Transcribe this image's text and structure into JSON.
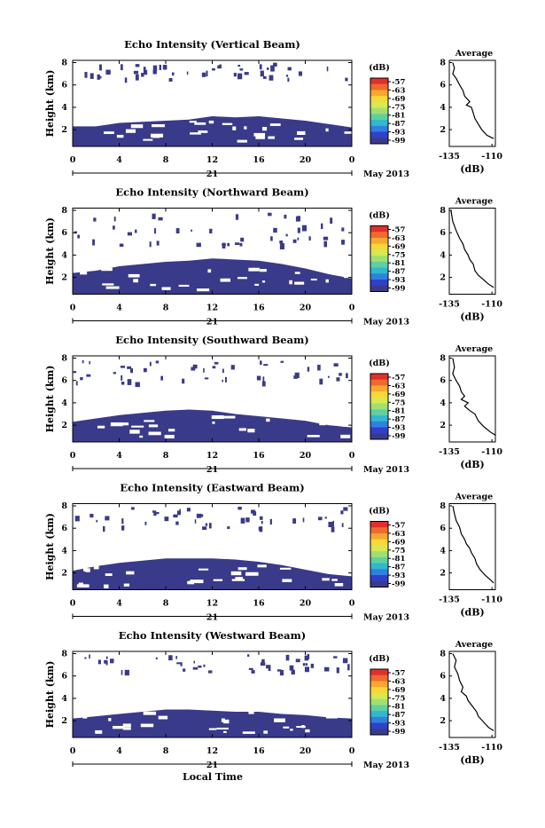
{
  "colorbar": {
    "unit_label": "(dB)",
    "ticks": [
      "-57",
      "-63",
      "-69",
      "-75",
      "-81",
      "-87",
      "-93",
      "-99"
    ],
    "colors": [
      "#e0302c",
      "#f06a2e",
      "#f8a830",
      "#f8d838",
      "#d8e850",
      "#a0e070",
      "#60d0a0",
      "#30b8d0",
      "#3080e0",
      "#3040c8",
      "#3a3a8a"
    ]
  },
  "date_label": "May 2013",
  "xlabel": "Local Time",
  "chart_data": [
    {
      "type": "heatmap",
      "title": "Echo Intensity (Vertical Beam)",
      "ylabel": "Height (km)",
      "x_ticks": [
        "0",
        "4",
        "8",
        "12",
        "16",
        "20",
        "0"
      ],
      "x_day": "21",
      "y_ticks": [
        "2",
        "4",
        "6",
        "8"
      ],
      "xlim": [
        0,
        24
      ],
      "ylim": [
        0.5,
        8.2
      ],
      "fill_top": [
        [
          0,
          2.3
        ],
        [
          2,
          2.3
        ],
        [
          4,
          2.6
        ],
        [
          6,
          2.7
        ],
        [
          8,
          2.8
        ],
        [
          10,
          2.9
        ],
        [
          12,
          3.2
        ],
        [
          14,
          3.1
        ],
        [
          16,
          3.2
        ],
        [
          18,
          3.0
        ],
        [
          20,
          2.8
        ],
        [
          22,
          2.5
        ],
        [
          24,
          2.2
        ]
      ],
      "sparse_band": [
        6.6,
        8.0
      ],
      "profile": {
        "title": "Average",
        "xlabel": "(dB)",
        "x_ticks": [
          "-135",
          "-110"
        ],
        "y_ticks": [
          "2",
          "4",
          "6",
          "8"
        ],
        "xlim": [
          -135,
          -108
        ],
        "ylim": [
          0.5,
          8.2
        ],
        "points": [
          [
            -133,
            8.0
          ],
          [
            -132,
            7.5
          ],
          [
            -133,
            7.0
          ],
          [
            -131,
            6.6
          ],
          [
            -129,
            6.0
          ],
          [
            -127,
            5.5
          ],
          [
            -126,
            5.0
          ],
          [
            -123,
            4.5
          ],
          [
            -125,
            4.2
          ],
          [
            -122,
            4.0
          ],
          [
            -121,
            3.5
          ],
          [
            -120,
            3.0
          ],
          [
            -118,
            2.5
          ],
          [
            -116,
            2.0
          ],
          [
            -113,
            1.5
          ],
          [
            -109,
            1.2
          ]
        ]
      }
    },
    {
      "type": "heatmap",
      "title": "Echo Intensity (Northward Beam)",
      "ylabel": "Height (km)",
      "x_ticks": [
        "0",
        "4",
        "8",
        "12",
        "16",
        "20",
        "0"
      ],
      "x_day": "21",
      "y_ticks": [
        "2",
        "4",
        "6",
        "8"
      ],
      "xlim": [
        0,
        24
      ],
      "ylim": [
        0.5,
        8.2
      ],
      "fill_top": [
        [
          0,
          2.4
        ],
        [
          2,
          2.6
        ],
        [
          4,
          3.0
        ],
        [
          6,
          3.2
        ],
        [
          8,
          3.4
        ],
        [
          10,
          3.5
        ],
        [
          12,
          3.7
        ],
        [
          14,
          3.6
        ],
        [
          16,
          3.5
        ],
        [
          18,
          3.2
        ],
        [
          20,
          2.8
        ],
        [
          22,
          2.3
        ],
        [
          24,
          1.9
        ]
      ],
      "sparse_band": [
        5.0,
        8.0
      ],
      "profile": {
        "title": "Average",
        "xlabel": "(dB)",
        "x_ticks": [
          "-135",
          "-110"
        ],
        "y_ticks": [
          "2",
          "4",
          "6",
          "8"
        ],
        "xlim": [
          -135,
          -108
        ],
        "ylim": [
          0.5,
          8.2
        ],
        "points": [
          [
            -134,
            8.0
          ],
          [
            -133,
            7.0
          ],
          [
            -131,
            6.2
          ],
          [
            -129,
            5.5
          ],
          [
            -127,
            5.0
          ],
          [
            -126,
            4.5
          ],
          [
            -124,
            4.0
          ],
          [
            -123,
            3.6
          ],
          [
            -121,
            3.2
          ],
          [
            -120,
            2.6
          ],
          [
            -118,
            2.2
          ],
          [
            -115,
            1.8
          ],
          [
            -112,
            1.4
          ],
          [
            -109,
            1.1
          ]
        ]
      }
    },
    {
      "type": "heatmap",
      "title": "Echo Intensity (Southward Beam)",
      "ylabel": "Height (km)",
      "x_ticks": [
        "0",
        "4",
        "8",
        "12",
        "16",
        "20",
        "0"
      ],
      "x_day": "21",
      "y_ticks": [
        "2",
        "4",
        "6",
        "8"
      ],
      "xlim": [
        0,
        24
      ],
      "ylim": [
        0.5,
        8.2
      ],
      "fill_top": [
        [
          0,
          2.3
        ],
        [
          2,
          2.6
        ],
        [
          4,
          2.9
        ],
        [
          6,
          3.1
        ],
        [
          8,
          3.3
        ],
        [
          10,
          3.4
        ],
        [
          12,
          3.3
        ],
        [
          14,
          3.0
        ],
        [
          16,
          2.8
        ],
        [
          18,
          2.6
        ],
        [
          20,
          2.4
        ],
        [
          22,
          2.0
        ],
        [
          24,
          1.8
        ]
      ],
      "sparse_band": [
        5.8,
        8.0
      ],
      "profile": {
        "title": "Average",
        "xlabel": "(dB)",
        "x_ticks": [
          "-135",
          "-110"
        ],
        "y_ticks": [
          "2",
          "4",
          "6",
          "8"
        ],
        "xlim": [
          -135,
          -108
        ],
        "ylim": [
          0.5,
          8.2
        ],
        "points": [
          [
            -133,
            8.0
          ],
          [
            -132,
            7.2
          ],
          [
            -133,
            6.6
          ],
          [
            -131,
            6.0
          ],
          [
            -129,
            5.5
          ],
          [
            -128,
            5.0
          ],
          [
            -126,
            4.6
          ],
          [
            -128,
            4.3
          ],
          [
            -124,
            4.0
          ],
          [
            -126,
            3.7
          ],
          [
            -123,
            3.3
          ],
          [
            -120,
            3.0
          ],
          [
            -118,
            2.4
          ],
          [
            -115,
            1.9
          ],
          [
            -111,
            1.4
          ],
          [
            -108,
            1.1
          ]
        ]
      }
    },
    {
      "type": "heatmap",
      "title": "Echo Intensity (Eastward Beam)",
      "ylabel": "Height (km)",
      "x_ticks": [
        "0",
        "4",
        "8",
        "12",
        "16",
        "20",
        "0"
      ],
      "x_day": "21",
      "y_ticks": [
        "2",
        "4",
        "6",
        "8"
      ],
      "xlim": [
        0,
        24
      ],
      "ylim": [
        0.5,
        8.2
      ],
      "fill_top": [
        [
          0,
          2.2
        ],
        [
          2,
          2.6
        ],
        [
          4,
          2.9
        ],
        [
          6,
          3.1
        ],
        [
          8,
          3.3
        ],
        [
          10,
          3.3
        ],
        [
          12,
          3.3
        ],
        [
          14,
          3.2
        ],
        [
          16,
          3.0
        ],
        [
          18,
          2.7
        ],
        [
          20,
          2.3
        ],
        [
          22,
          1.9
        ],
        [
          24,
          1.7
        ]
      ],
      "sparse_band": [
        6.0,
        8.0
      ],
      "profile": {
        "title": "Average",
        "xlabel": "(dB)",
        "x_ticks": [
          "-135",
          "-110"
        ],
        "y_ticks": [
          "2",
          "4",
          "6",
          "8"
        ],
        "xlim": [
          -135,
          -108
        ],
        "ylim": [
          0.5,
          8.2
        ],
        "points": [
          [
            -133,
            8.0
          ],
          [
            -132,
            7.3
          ],
          [
            -131,
            6.7
          ],
          [
            -129,
            6.1
          ],
          [
            -128,
            5.5
          ],
          [
            -126,
            5.0
          ],
          [
            -125,
            4.6
          ],
          [
            -123,
            4.2
          ],
          [
            -122,
            3.8
          ],
          [
            -120,
            3.3
          ],
          [
            -119,
            2.8
          ],
          [
            -117,
            2.3
          ],
          [
            -114,
            1.8
          ],
          [
            -111,
            1.4
          ],
          [
            -109,
            1.1
          ]
        ]
      }
    },
    {
      "type": "heatmap",
      "title": "Echo Intensity (Westward Beam)",
      "ylabel": "Height (km)",
      "x_ticks": [
        "0",
        "4",
        "8",
        "12",
        "16",
        "20",
        "0"
      ],
      "x_day": "21",
      "y_ticks": [
        "2",
        "4",
        "6",
        "8"
      ],
      "xlim": [
        0,
        24
      ],
      "ylim": [
        0.5,
        8.2
      ],
      "fill_top": [
        [
          0,
          2.2
        ],
        [
          2,
          2.4
        ],
        [
          4,
          2.6
        ],
        [
          6,
          2.8
        ],
        [
          8,
          3.0
        ],
        [
          10,
          3.0
        ],
        [
          12,
          2.9
        ],
        [
          14,
          2.8
        ],
        [
          16,
          2.8
        ],
        [
          18,
          2.6
        ],
        [
          20,
          2.5
        ],
        [
          22,
          2.3
        ],
        [
          24,
          2.2
        ]
      ],
      "sparse_band": [
        6.5,
        8.0
      ],
      "profile": {
        "title": "Average",
        "xlabel": "(dB)",
        "x_ticks": [
          "-135",
          "-110"
        ],
        "y_ticks": [
          "2",
          "4",
          "6",
          "8"
        ],
        "xlim": [
          -135,
          -108
        ],
        "ylim": [
          0.5,
          8.2
        ],
        "points": [
          [
            -133,
            8.0
          ],
          [
            -131,
            7.4
          ],
          [
            -132,
            6.8
          ],
          [
            -130,
            6.2
          ],
          [
            -129,
            5.6
          ],
          [
            -127,
            5.0
          ],
          [
            -128,
            4.6
          ],
          [
            -125,
            4.2
          ],
          [
            -124,
            3.8
          ],
          [
            -121,
            3.2
          ],
          [
            -119,
            2.8
          ],
          [
            -118,
            2.4
          ],
          [
            -115,
            1.9
          ],
          [
            -112,
            1.4
          ],
          [
            -109,
            1.1
          ]
        ]
      }
    }
  ]
}
